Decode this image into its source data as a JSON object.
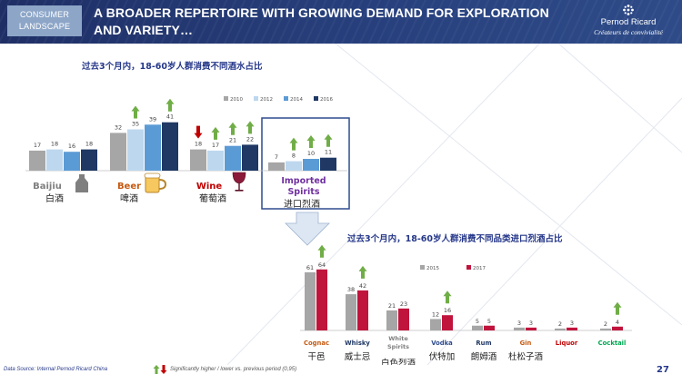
{
  "header": {
    "tag_line1": "CONSUMER",
    "tag_line2": "LANDSCAPE",
    "title": "A BROADER REPERTOIRE WITH GROWING DEMAND FOR EXPLORATION AND VARIETY…",
    "logo_brand": "Pernod Ricard",
    "logo_tagline": "Créateurs de convivialité"
  },
  "colors": {
    "header_bg": "#24386f",
    "bar_2010": "#a6a6a6",
    "bar_2012": "#bdd7ee",
    "bar_2014": "#5b9bd5",
    "bar_2016": "#1f3864",
    "bar_2015": "#a6a6a6",
    "bar_2017": "#c0143c",
    "arrow_up": "#70ad47",
    "arrow_down": "#c00000",
    "highlight_border": "#2e4c8e"
  },
  "icons": [
    "baijiu-bottle-icon",
    "beer-mug-icon",
    "wine-glass-icon",
    "arrow-up-icon",
    "arrow-down-icon"
  ],
  "chart_data": [
    {
      "type": "bar",
      "title": "过去3个月内，18-60岁人群消费不同酒水占比",
      "categories": [
        "Baijiu",
        "Beer",
        "Wine",
        "Imported Spirits"
      ],
      "categories_cn": [
        "白酒",
        "啤酒",
        "葡萄酒",
        "进口烈酒"
      ],
      "series": [
        {
          "name": "2010",
          "values": [
            17,
            32,
            18,
            7
          ]
        },
        {
          "name": "2012",
          "values": [
            18,
            35,
            17,
            8
          ]
        },
        {
          "name": "2014",
          "values": [
            16,
            39,
            21,
            10
          ]
        },
        {
          "name": "2016",
          "values": [
            18,
            41,
            22,
            11
          ]
        }
      ],
      "change_arrows": [
        [
          "none",
          "none",
          "down",
          "none"
        ],
        [
          "none",
          "up",
          "up",
          "up"
        ],
        [
          "none",
          "none",
          "up",
          "up"
        ],
        [
          "none",
          "up",
          "up",
          "up"
        ]
      ],
      "highlighted_category": "Imported Spirits",
      "legend_position": "top-right",
      "grid": false
    },
    {
      "type": "bar",
      "title": "过去3个月内，18-60岁人群消费不同品类进口烈酒占比",
      "categories": [
        "Cognac",
        "Whisky",
        "White Spirits",
        "Vodka",
        "Rum",
        "Gin",
        "Liquor",
        "Cocktail"
      ],
      "categories_cn": [
        "干邑",
        "威士忌",
        "白色烈酒",
        "伏特加",
        "朗姆酒",
        "杜松子酒",
        "",
        ""
      ],
      "category_colors": [
        "#c55a11",
        "#1f3864",
        "#7f7f7f",
        "#2e4c8e",
        "#1f3864",
        "#c55a11",
        "#c00000",
        "#00a651"
      ],
      "series": [
        {
          "name": "2015",
          "values": [
            61,
            38,
            21,
            12,
            5,
            3,
            2,
            2
          ]
        },
        {
          "name": "2017",
          "values": [
            64,
            42,
            23,
            16,
            5,
            3,
            3,
            4
          ]
        }
      ],
      "change_arrows": [
        "up",
        "up",
        "none",
        "up",
        "none",
        "none",
        "none",
        "up"
      ],
      "legend_position": "top-center",
      "grid": false
    }
  ],
  "footer": {
    "source": "Data Source: Internal Pernod Ricard China",
    "legend_note": "Significantly higher / lower vs. previous period (0,95)",
    "page_number": "27"
  }
}
